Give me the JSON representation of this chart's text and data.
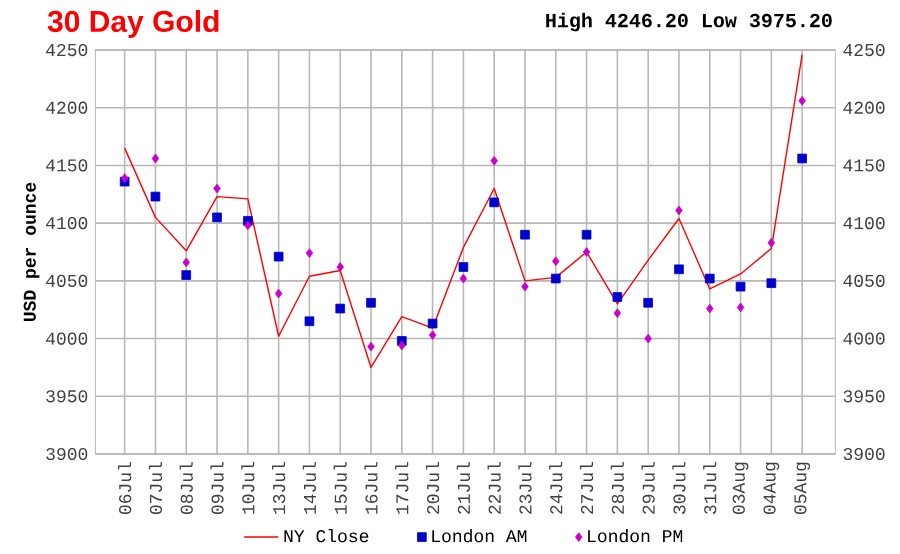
{
  "chart_data": {
    "type": "line",
    "title": "30 Day Gold",
    "subtitle": "High 4246.20 Low 3975.20",
    "ylabel": "USD per ounce",
    "categories": [
      "06Jul",
      "07Jul",
      "08Jul",
      "09Jul",
      "10Jul",
      "13Jul",
      "14Jul",
      "15Jul",
      "16Jul",
      "17Jul",
      "20Jul",
      "21Jul",
      "22Jul",
      "23Jul",
      "24Jul",
      "27Jul",
      "28Jul",
      "29Jul",
      "30Jul",
      "31Jul",
      "03Aug",
      "04Aug",
      "05Aug"
    ],
    "series": [
      {
        "name": "NY Close",
        "color": "#ff0000",
        "marker": "none",
        "line_style": "solid",
        "values": [
          4165,
          4105,
          4076,
          4123,
          4121,
          4002,
          4054,
          4059,
          3975,
          4019,
          4009,
          4079,
          4130,
          4050,
          4053,
          4075,
          4030,
          4068,
          4104,
          4043,
          4056,
          4078,
          4246
        ]
      },
      {
        "name": "London AM",
        "type": "scatter",
        "color": "#0000cc",
        "marker": "square",
        "values": [
          4136,
          4123,
          4055,
          4105,
          4102,
          4071,
          4015,
          4026,
          4031,
          3998,
          4013,
          4062,
          4118,
          4090,
          4052,
          4090,
          4036,
          4031,
          4060,
          4052,
          4045,
          4048,
          4156
        ]
      },
      {
        "name": "London PM",
        "type": "scatter",
        "color": "#cc00cc",
        "marker": "diamond",
        "values": [
          4139,
          4156,
          4066,
          4130,
          4098,
          4039,
          4074,
          4062,
          3993,
          3994,
          4003,
          4052,
          4154,
          4045,
          4067,
          4075,
          4022,
          4000,
          4111,
          4026,
          4027,
          4083,
          4206
        ]
      }
    ],
    "ylim": [
      3900,
      4250
    ],
    "yticks": [
      3900,
      3950,
      4000,
      4050,
      4100,
      4150,
      4200,
      4250
    ],
    "y2lim": [
      3900,
      4250
    ],
    "y2ticks": [
      3900,
      3950,
      4000,
      4050,
      4100,
      4150,
      4200,
      4250
    ],
    "grid": true,
    "legend": "bottom"
  }
}
